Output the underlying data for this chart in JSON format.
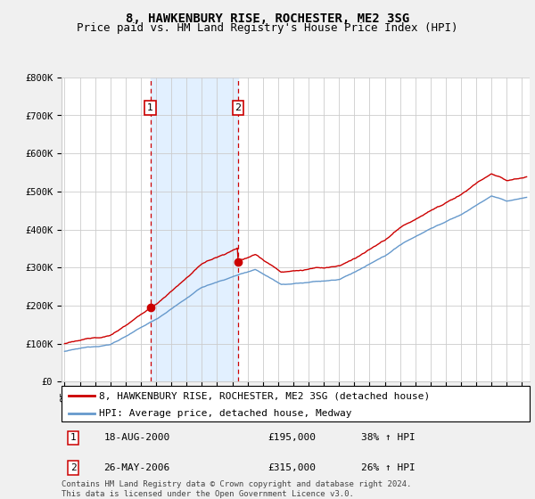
{
  "title": "8, HAWKENBURY RISE, ROCHESTER, ME2 3SG",
  "subtitle": "Price paid vs. HM Land Registry's House Price Index (HPI)",
  "ylim": [
    0,
    800000
  ],
  "yticks": [
    0,
    100000,
    200000,
    300000,
    400000,
    500000,
    600000,
    700000,
    800000
  ],
  "ytick_labels": [
    "£0",
    "£100K",
    "£200K",
    "£300K",
    "£400K",
    "£500K",
    "£600K",
    "£700K",
    "£800K"
  ],
  "xlim_start": 1994.8,
  "xlim_end": 2025.5,
  "sale1_year": 2000.63,
  "sale1_price": 195000,
  "sale1_label": "1",
  "sale1_date": "18-AUG-2000",
  "sale1_price_str": "£195,000",
  "sale1_hpi_pct": "38% ↑ HPI",
  "sale2_year": 2006.38,
  "sale2_price": 315000,
  "sale2_label": "2",
  "sale2_date": "26-MAY-2006",
  "sale2_price_str": "£315,000",
  "sale2_hpi_pct": "26% ↑ HPI",
  "red_line_color": "#cc0000",
  "blue_line_color": "#6699cc",
  "grid_color": "#cccccc",
  "plot_bg_color": "#ffffff",
  "span_color": "#ddeeff",
  "vline_color": "#cc0000",
  "marker_color": "#cc0000",
  "legend_label_red": "8, HAWKENBURY RISE, ROCHESTER, ME2 3SG (detached house)",
  "legend_label_blue": "HPI: Average price, detached house, Medway",
  "footnote": "Contains HM Land Registry data © Crown copyright and database right 2024.\nThis data is licensed under the Open Government Licence v3.0.",
  "title_fontsize": 10,
  "subtitle_fontsize": 9,
  "tick_fontsize": 7.5,
  "legend_fontsize": 8,
  "table_fontsize": 8,
  "footnote_fontsize": 6.5
}
